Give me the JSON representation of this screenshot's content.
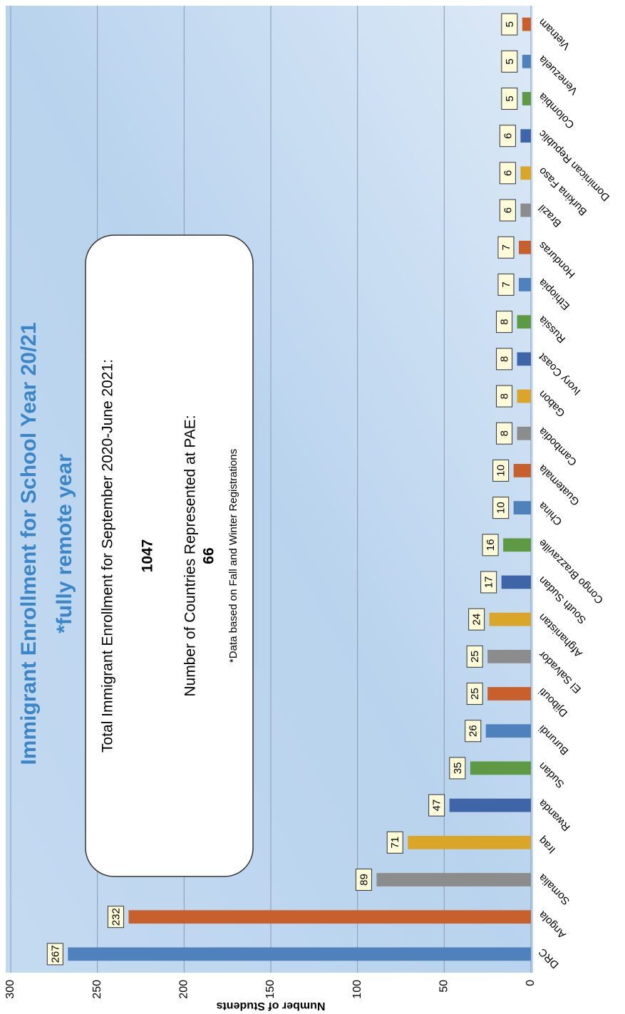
{
  "chart_data": {
    "type": "bar",
    "title": "Immigrant Enrollment for School Year 20/21",
    "subtitle": "*fully remote year",
    "y_label": "Number of Students",
    "categories": [
      "DRC",
      "Angola",
      "Somalia",
      "Iraq",
      "Rwanda",
      "Sudan",
      "Burundi",
      "Djibouti",
      "El Salvador",
      "Afghanistan",
      "South Sudan",
      "Congo Brazzaville",
      "China",
      "Guatemala",
      "Cambodia",
      "Gabon",
      "Ivory Coast",
      "Russia",
      "Ethiopia",
      "Honduras",
      "Brazil",
      "Burkina Faso",
      "Dominican Republic",
      "Colombia",
      "Venezuela",
      "Vietnam"
    ],
    "values": [
      267,
      232,
      89,
      71,
      47,
      35,
      26,
      25,
      25,
      24,
      17,
      16,
      10,
      10,
      8,
      8,
      8,
      8,
      7,
      7,
      6,
      6,
      6,
      5,
      5,
      5
    ],
    "colors": [
      "#4f81bd",
      "#c8602e",
      "#8c8c8c",
      "#d9a62a",
      "#3f64a8",
      "#5e9a43"
    ],
    "ylim": [
      0,
      300
    ],
    "yticks": [
      0,
      50,
      100,
      150,
      200,
      250,
      300
    ],
    "grid": true,
    "annotation": {
      "line1": "Total Immigrant Enrollment for September 2020-June 2021:",
      "total": "1047",
      "line2": "Number of Countries Represented at PAE:",
      "countries": "66",
      "note": "*Data based on Fall and Winter Registrations"
    }
  }
}
